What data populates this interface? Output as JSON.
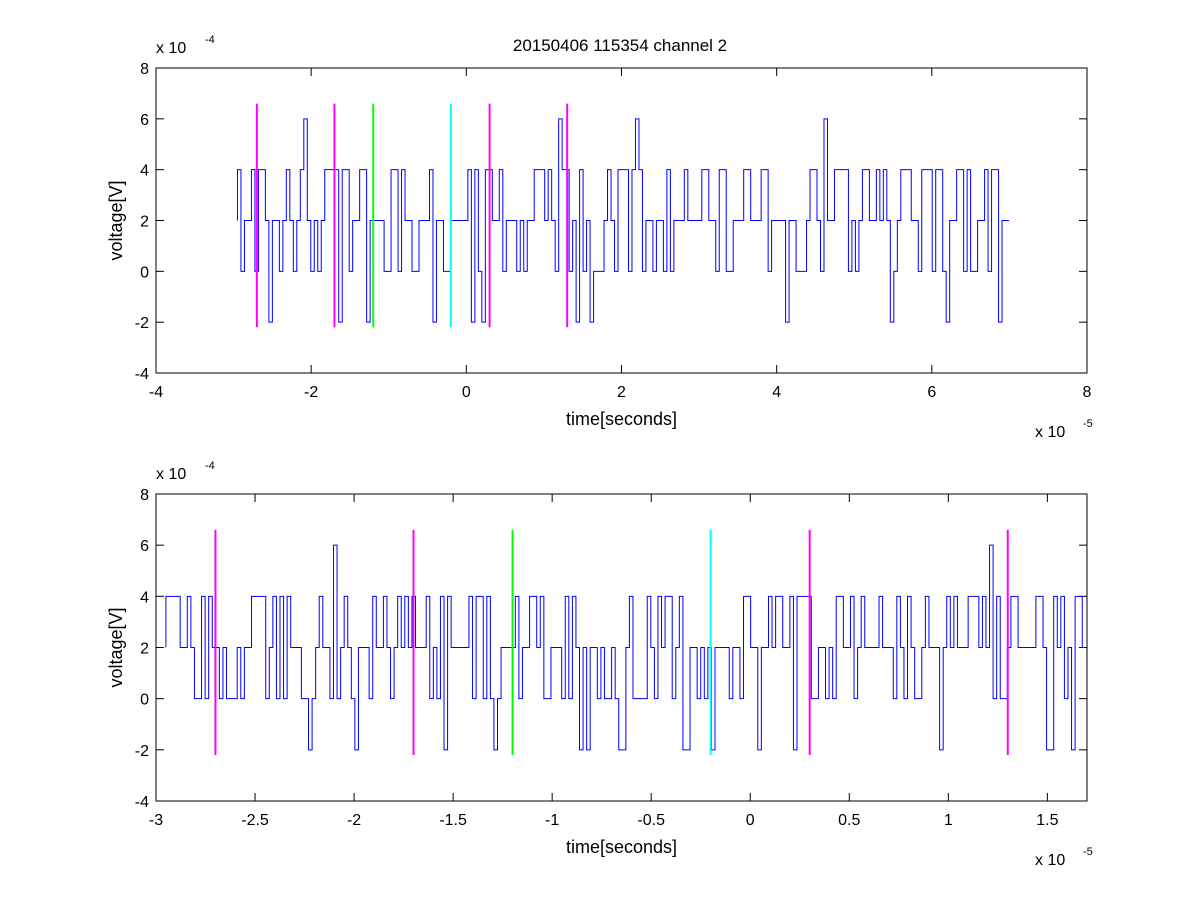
{
  "figure": {
    "title": "20150406 115354 channel 2"
  },
  "chart_data": [
    {
      "type": "line",
      "title": "20150406 115354 channel 2",
      "xlabel": "time[seconds]",
      "ylabel": "voltage[V]",
      "x_exponent": "x 10",
      "x_exponent_power": "-5",
      "y_exponent": "x 10",
      "y_exponent_power": "-4",
      "xlim": [
        -4,
        8
      ],
      "ylim": [
        -4,
        8
      ],
      "xticks": [
        -4,
        -2,
        0,
        2,
        4,
        6,
        8
      ],
      "xtick_labels": [
        "-4",
        "-2",
        "0",
        "2",
        "4",
        "6",
        "8"
      ],
      "yticks": [
        -4,
        -2,
        0,
        2,
        4,
        6,
        8
      ],
      "ytick_labels": [
        "-4",
        "-2",
        "0",
        "2",
        "4",
        "6",
        "8"
      ],
      "grid": false,
      "legend": "none",
      "series": [
        {
          "color": "#0000ff",
          "note_style": "quantized noise trace",
          "x_start": -2.95,
          "x_end": 7.0,
          "levels": [
            -2,
            0,
            2,
            4,
            6
          ],
          "spikes": [
            {
              "x": -2.1,
              "y": 6
            },
            {
              "x": -1.3,
              "y": -2
            },
            {
              "x": 1.2,
              "y": 6
            },
            {
              "x": 2.2,
              "y": 6
            },
            {
              "x": 4.6,
              "y": 6
            },
            {
              "x": 6.2,
              "y": -2
            },
            {
              "x": 6.85,
              "y": -2
            }
          ]
        }
      ],
      "markers": [
        {
          "x": -2.7,
          "color": "#ff00ff",
          "ymin": -2.2,
          "ymax": 6.6
        },
        {
          "x": -1.7,
          "color": "#ff00ff",
          "ymin": -2.2,
          "ymax": 6.6
        },
        {
          "x": -1.2,
          "color": "#00ff00",
          "ymin": -2.2,
          "ymax": 6.6
        },
        {
          "x": -0.2,
          "color": "#00ffff",
          "ymin": -2.2,
          "ymax": 6.6
        },
        {
          "x": 0.3,
          "color": "#ff00ff",
          "ymin": -2.2,
          "ymax": 6.6
        },
        {
          "x": 1.3,
          "color": "#ff00ff",
          "ymin": -2.2,
          "ymax": 6.6
        }
      ]
    },
    {
      "type": "line",
      "xlabel": "time[seconds]",
      "ylabel": "voltage[V]",
      "x_exponent": "x 10",
      "x_exponent_power": "-5",
      "y_exponent": "x 10",
      "y_exponent_power": "-4",
      "xlim": [
        -3.0,
        1.7
      ],
      "ylim": [
        -4,
        8
      ],
      "xticks": [
        -3,
        -2.5,
        -2,
        -1.5,
        -1,
        -0.5,
        0,
        0.5,
        1,
        1.5
      ],
      "xtick_labels": [
        "-3",
        "-2.5",
        "-2",
        "-1.5",
        "-1",
        "-0.5",
        "0",
        "0.5",
        "1",
        "1.5"
      ],
      "yticks": [
        -4,
        -2,
        0,
        2,
        4,
        6,
        8
      ],
      "ytick_labels": [
        "-4",
        "-2",
        "0",
        "2",
        "4",
        "6",
        "8"
      ],
      "grid": false,
      "legend": "none",
      "series": [
        {
          "color": "#0000ff",
          "note_style": "quantized noise trace",
          "x_start": -2.95,
          "x_end": 1.7,
          "levels": [
            -2,
            0,
            2,
            4,
            6
          ],
          "spikes": [
            {
              "x": -2.1,
              "y": 6
            },
            {
              "x": -2.0,
              "y": -2
            },
            {
              "x": -1.3,
              "y": -2
            },
            {
              "x": 1.2,
              "y": 6
            },
            {
              "x": -0.2,
              "y": -2
            },
            {
              "x": 0.95,
              "y": -2
            }
          ]
        }
      ],
      "markers": [
        {
          "x": -2.7,
          "color": "#ff00ff",
          "ymin": -2.2,
          "ymax": 6.6
        },
        {
          "x": -1.7,
          "color": "#ff00ff",
          "ymin": -2.2,
          "ymax": 6.6
        },
        {
          "x": -1.2,
          "color": "#00ff00",
          "ymin": -2.2,
          "ymax": 6.6
        },
        {
          "x": -0.2,
          "color": "#00ffff",
          "ymin": -2.2,
          "ymax": 6.6
        },
        {
          "x": 0.3,
          "color": "#ff00ff",
          "ymin": -2.2,
          "ymax": 6.6
        },
        {
          "x": 1.3,
          "color": "#ff00ff",
          "ymin": -2.2,
          "ymax": 6.6
        }
      ]
    }
  ]
}
